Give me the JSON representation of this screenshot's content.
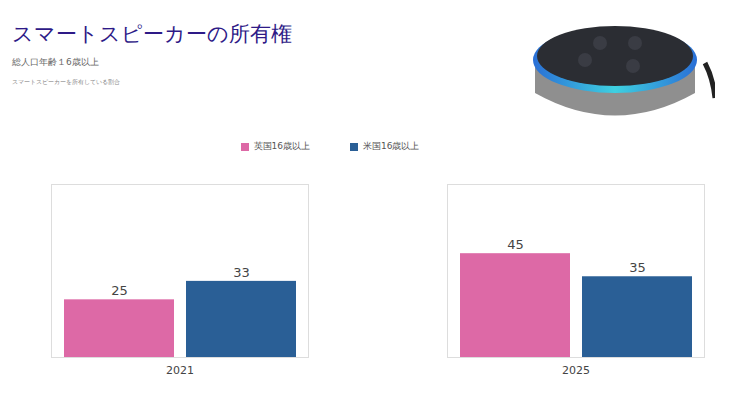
{
  "chart_data": {
    "type": "bar",
    "title": "スマートスピーカーの所有権",
    "subtitle": "総人口年齢１6歳以上",
    "caption": "スマートスピーカーを所有している割合",
    "categories": [
      "2021",
      "2025"
    ],
    "series": [
      {
        "name": "英国16歳以上",
        "color": "#dd69a6",
        "values": [
          25,
          45
        ]
      },
      {
        "name": "米国16歳以上",
        "color": "#2a5f96",
        "values": [
          33,
          35
        ]
      }
    ],
    "ylim": [
      0,
      75
    ],
    "yticks": [],
    "grid": false,
    "legend": "top",
    "data_labels": true,
    "tick_labels": "x"
  }
}
